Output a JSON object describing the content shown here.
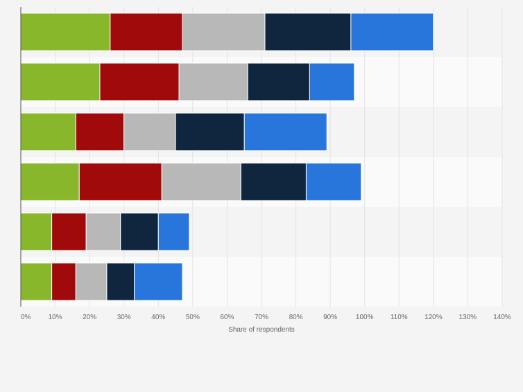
{
  "chart_data": {
    "type": "bar",
    "orientation": "horizontal",
    "stacked": true,
    "title": "",
    "xlabel": "Share of respondents",
    "ylabel": "",
    "xlim": [
      0,
      140
    ],
    "x_ticks": [
      "0%",
      "10%",
      "20%",
      "30%",
      "40%",
      "50%",
      "60%",
      "70%",
      "80%",
      "90%",
      "100%",
      "110%",
      "120%",
      "130%",
      "140%"
    ],
    "categories": [
      "",
      "",
      "",
      "",
      "",
      ""
    ],
    "grid": true,
    "series": [
      {
        "name": "",
        "color": "#88b72b",
        "values": [
          26,
          23,
          16,
          17,
          9,
          9
        ]
      },
      {
        "name": "",
        "color": "#a10a0a",
        "values": [
          21,
          23,
          14,
          24,
          10,
          7
        ]
      },
      {
        "name": "",
        "color": "#b8b8b8",
        "values": [
          24,
          20,
          15,
          23,
          10,
          9
        ]
      },
      {
        "name": "",
        "color": "#10263f",
        "values": [
          25,
          18,
          20,
          19,
          11,
          8
        ]
      },
      {
        "name": "",
        "color": "#2876db",
        "values": [
          24,
          13,
          24,
          16,
          9,
          14
        ]
      }
    ]
  }
}
